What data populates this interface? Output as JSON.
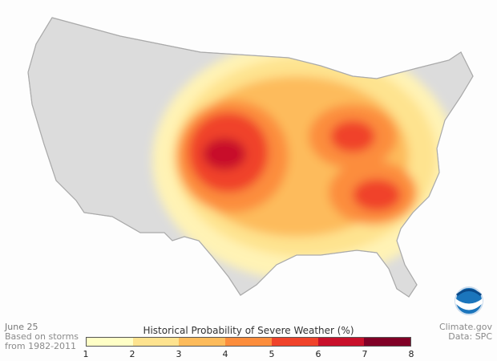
{
  "date_label": "June 25",
  "basis_line1": "Based on storms",
  "basis_line2": "from 1982-2011",
  "credit": "Climate.gov",
  "source": "Data: SPC",
  "legend": {
    "title": "Historical Probability of Severe Weather (%)",
    "ticks": [
      "1",
      "2",
      "3",
      "4",
      "5",
      "6",
      "7",
      "8"
    ],
    "colors": [
      "#ffffc6",
      "#fee38f",
      "#fdbb5b",
      "#fc8d3c",
      "#f0432a",
      "#c8102a",
      "#800026"
    ]
  },
  "logo": "NOAA",
  "hotspots": [
    {
      "region": "Kansas/Nebraska",
      "level": "6-7%"
    },
    {
      "region": "Indiana/Ohio",
      "level": "5-6%"
    },
    {
      "region": "Georgia/Carolinas",
      "level": "5-6%"
    }
  ]
}
